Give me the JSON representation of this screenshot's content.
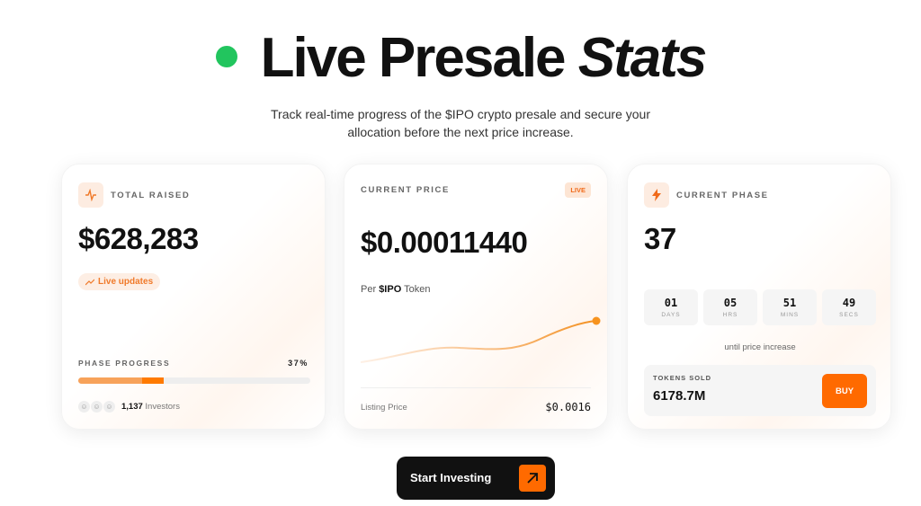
{
  "header": {
    "title_main": "Live Presale",
    "title_italic": "Stats",
    "subtitle_line1": "Track real-time progress of the $IPO crypto presale and secure your",
    "subtitle_line2": "allocation before the next price increase.",
    "live_dot_color": "#22c55e"
  },
  "total_raised": {
    "icon": "activity-icon",
    "label": "TOTAL RAISED",
    "value": "$628,283",
    "pill": "Live updates",
    "progress_label": "PHASE PROGRESS",
    "progress_text": "37%",
    "progress_value": 37,
    "investors_count": "1,137",
    "investors_label": "Investors"
  },
  "current_price": {
    "label": "CURRENT PRICE",
    "badge": "LIVE",
    "value": "$0.00011440",
    "per_prefix": "Per",
    "per_token": "$IPO",
    "per_suffix": "Token",
    "listing_label": "Listing Price",
    "listing_value": "$0.0016"
  },
  "current_phase": {
    "icon": "lightning-icon",
    "label": "CURRENT PHASE",
    "value": "37",
    "countdown": [
      {
        "n": "01",
        "u": "DAYS"
      },
      {
        "n": "05",
        "u": "HRS"
      },
      {
        "n": "51",
        "u": "MINS"
      },
      {
        "n": "49",
        "u": "SECS"
      }
    ],
    "until": "until price increase",
    "tokens_label": "TOKENS SOLD",
    "tokens_value": "6178.7M",
    "buy": "BUY"
  },
  "cta": {
    "label": "Start Investing",
    "icon": "arrow-up-right-icon"
  },
  "colors": {
    "accent": "#ff6a00",
    "dark": "#111111"
  }
}
